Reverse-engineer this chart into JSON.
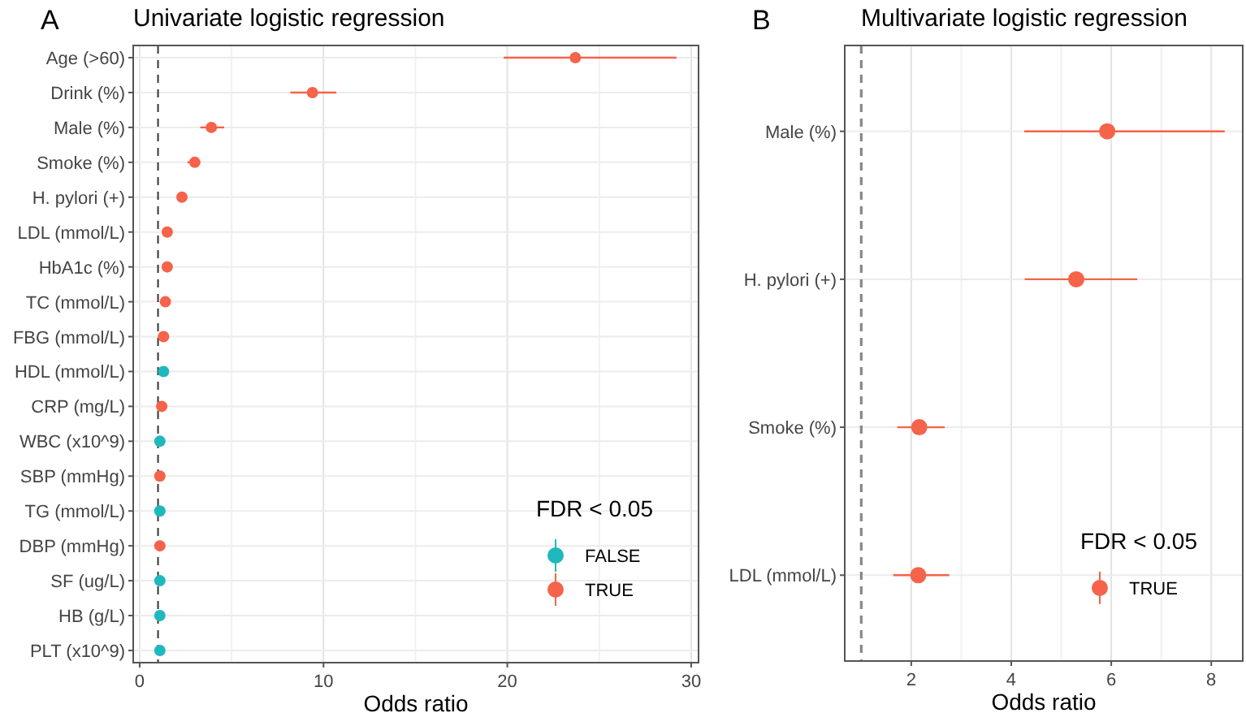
{
  "chart_data": [
    {
      "type": "scatter",
      "orientation": "horizontal",
      "title": "Univariate logistic regression",
      "annotations": [
        "A"
      ],
      "xlabel": "Odds ratio",
      "legend_title": "FDR < 0.05",
      "legend": "bottom right",
      "grid": true,
      "marker": "circle",
      "categories": [
        "Age (>60)",
        "Drink (%)",
        "Male (%)",
        "Smoke (%)",
        "H. pylori (+)",
        "LDL (mmol/L)",
        "HbA1c (%)",
        "TC (mmol/L)",
        "FBG (mmol/L)",
        "HDL (mmol/L)",
        "CRP (mg/L)",
        "WBC (x10^9)",
        "SBP (mmHg)",
        "TG (mmol/L)",
        "DBP (mmHg)",
        "SF (ug/L)",
        "HB (g/L)",
        "PLT (x10^9)"
      ],
      "xlim": [
        -0.35,
        30.4
      ],
      "xticks": [
        0,
        10,
        20,
        30
      ],
      "ref_lines": [
        {
          "axis": "x",
          "value": 1,
          "line_style": "dashed"
        }
      ],
      "series": [
        {
          "name": "FALSE",
          "color": "#1fb8be",
          "values": [
            null,
            null,
            null,
            null,
            null,
            null,
            null,
            null,
            null,
            1.3,
            null,
            1.1,
            null,
            1.1,
            null,
            1.1,
            1.1,
            1.1
          ]
        },
        {
          "name": "TRUE",
          "color": "#f5634a",
          "values": [
            23.7,
            9.4,
            3.9,
            3.0,
            2.3,
            1.5,
            1.5,
            1.4,
            1.3,
            null,
            1.2,
            null,
            1.1,
            null,
            1.1,
            null,
            null,
            null
          ],
          "errors": [
            [
              19.8,
              29.2
            ],
            [
              8.2,
              10.7
            ],
            [
              3.3,
              4.6
            ],
            [
              2.6,
              3.3
            ],
            null,
            null,
            null,
            null,
            null,
            null,
            null,
            null,
            null,
            null,
            null,
            null,
            null,
            null
          ]
        }
      ]
    },
    {
      "type": "scatter",
      "orientation": "horizontal",
      "title": "Multivariate logistic regression",
      "annotations": [
        "B"
      ],
      "xlabel": "Odds ratio",
      "legend_title": "FDR < 0.05",
      "legend": "bottom right",
      "grid": true,
      "marker": "circle",
      "categories": [
        "Male (%)",
        "H. pylori  (+)",
        "Smoke (%)",
        "LDL (mmol/L)"
      ],
      "xlim": [
        0.67,
        8.63
      ],
      "xticks": [
        2,
        4,
        6,
        8
      ],
      "ref_lines": [
        {
          "axis": "x",
          "value": 1,
          "line_style": "dashed"
        }
      ],
      "series": [
        {
          "name": "TRUE",
          "color": "#f5634a",
          "values": [
            5.92,
            5.3,
            2.16,
            2.14
          ],
          "errors": [
            [
              4.26,
              8.27
            ],
            [
              4.27,
              6.52
            ],
            [
              1.72,
              2.67
            ],
            [
              1.64,
              2.76
            ]
          ]
        }
      ]
    }
  ]
}
